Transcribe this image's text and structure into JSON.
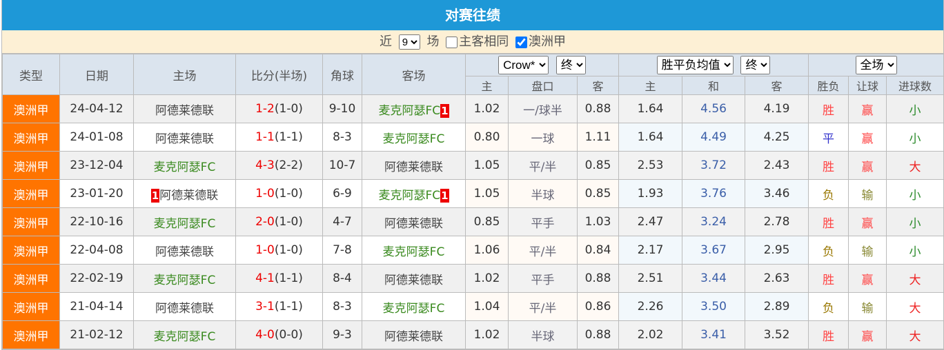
{
  "title": "对赛往绩",
  "filter": {
    "near": "近",
    "count": "9",
    "field": "场",
    "same_label": "主客相同",
    "same_checked": false,
    "league_label": "澳洲甲",
    "league_checked": true
  },
  "headers": {
    "type": "类型",
    "date": "日期",
    "home": "主场",
    "score": "比分(半场)",
    "corner": "角球",
    "away": "客场",
    "company": "Crow*",
    "odds_time": "终",
    "avg": "胜平负均值",
    "avg_time": "终",
    "scope": "全场",
    "sub": [
      "主",
      "盘口",
      "客",
      "主",
      "和",
      "客",
      "胜负",
      "让球",
      "进球数"
    ]
  },
  "colors": {
    "title_bg": "#1e98d7",
    "type_bg": "#ff7400",
    "score_red": "#e00000"
  },
  "rows": [
    {
      "type": "澳洲甲",
      "date": "24-04-12",
      "home": "阿德莱德联",
      "home_rc": "",
      "away": "麦克阿瑟FC",
      "away_rc": "1",
      "ft": "1-2",
      "ht": "(1-0)",
      "corner": "9-10",
      "o_h": "1.02",
      "pan": "一/球半",
      "o_a": "0.88",
      "e_h": "1.64",
      "e_d": "4.56",
      "e_a": "4.19",
      "res": "胜",
      "rq": "赢",
      "goals": "小"
    },
    {
      "type": "澳洲甲",
      "date": "24-01-08",
      "home": "阿德莱德联",
      "home_rc": "",
      "away": "麦克阿瑟FC",
      "away_rc": "",
      "ft": "1-1",
      "ht": "(1-1)",
      "corner": "8-3",
      "o_h": "0.80",
      "pan": "一球",
      "o_a": "1.11",
      "e_h": "1.64",
      "e_d": "4.49",
      "e_a": "4.25",
      "res": "平",
      "rq": "赢",
      "goals": "小"
    },
    {
      "type": "澳洲甲",
      "date": "23-12-04",
      "home": "麦克阿瑟FC",
      "home_rc": "",
      "away": "阿德莱德联",
      "away_rc": "",
      "ft": "4-3",
      "ht": "(2-2)",
      "corner": "10-7",
      "o_h": "1.05",
      "pan": "平/半",
      "o_a": "0.85",
      "e_h": "2.53",
      "e_d": "3.72",
      "e_a": "2.43",
      "res": "胜",
      "rq": "赢",
      "goals": "大"
    },
    {
      "type": "澳洲甲",
      "date": "23-01-20",
      "home": "阿德莱德联",
      "home_rc": "1",
      "away": "麦克阿瑟FC",
      "away_rc": "1",
      "ft": "1-0",
      "ht": "(1-0)",
      "corner": "6-9",
      "o_h": "1.05",
      "pan": "半球",
      "o_a": "0.85",
      "e_h": "1.93",
      "e_d": "3.76",
      "e_a": "3.46",
      "res": "负",
      "rq": "输",
      "goals": "小"
    },
    {
      "type": "澳洲甲",
      "date": "22-10-16",
      "home": "麦克阿瑟FC",
      "home_rc": "",
      "away": "阿德莱德联",
      "away_rc": "",
      "ft": "2-0",
      "ht": "(1-0)",
      "corner": "4-7",
      "o_h": "0.85",
      "pan": "平手",
      "o_a": "1.03",
      "e_h": "2.47",
      "e_d": "3.24",
      "e_a": "2.78",
      "res": "胜",
      "rq": "赢",
      "goals": "小"
    },
    {
      "type": "澳洲甲",
      "date": "22-04-08",
      "home": "阿德莱德联",
      "home_rc": "",
      "away": "麦克阿瑟FC",
      "away_rc": "",
      "ft": "1-0",
      "ht": "(1-0)",
      "corner": "7-8",
      "o_h": "1.06",
      "pan": "平/半",
      "o_a": "0.84",
      "e_h": "2.17",
      "e_d": "3.67",
      "e_a": "2.95",
      "res": "负",
      "rq": "输",
      "goals": "小"
    },
    {
      "type": "澳洲甲",
      "date": "22-02-19",
      "home": "麦克阿瑟FC",
      "home_rc": "",
      "away": "阿德莱德联",
      "away_rc": "",
      "ft": "4-1",
      "ht": "(1-1)",
      "corner": "8-4",
      "o_h": "1.02",
      "pan": "平手",
      "o_a": "0.88",
      "e_h": "2.51",
      "e_d": "3.44",
      "e_a": "2.63",
      "res": "胜",
      "rq": "赢",
      "goals": "大"
    },
    {
      "type": "澳洲甲",
      "date": "21-04-14",
      "home": "阿德莱德联",
      "home_rc": "",
      "away": "麦克阿瑟FC",
      "away_rc": "",
      "ft": "3-1",
      "ht": "(1-1)",
      "corner": "8-3",
      "o_h": "1.04",
      "pan": "平/半",
      "o_a": "0.86",
      "e_h": "2.26",
      "e_d": "3.50",
      "e_a": "2.89",
      "res": "负",
      "rq": "输",
      "goals": "大"
    },
    {
      "type": "澳洲甲",
      "date": "21-02-12",
      "home": "麦克阿瑟FC",
      "home_rc": "",
      "away": "阿德莱德联",
      "away_rc": "",
      "ft": "4-0",
      "ht": "(0-0)",
      "corner": "9-3",
      "o_h": "1.02",
      "pan": "半球",
      "o_a": "0.88",
      "e_h": "2.02",
      "e_d": "3.41",
      "e_a": "3.52",
      "res": "胜",
      "rq": "赢",
      "goals": "大"
    }
  ]
}
